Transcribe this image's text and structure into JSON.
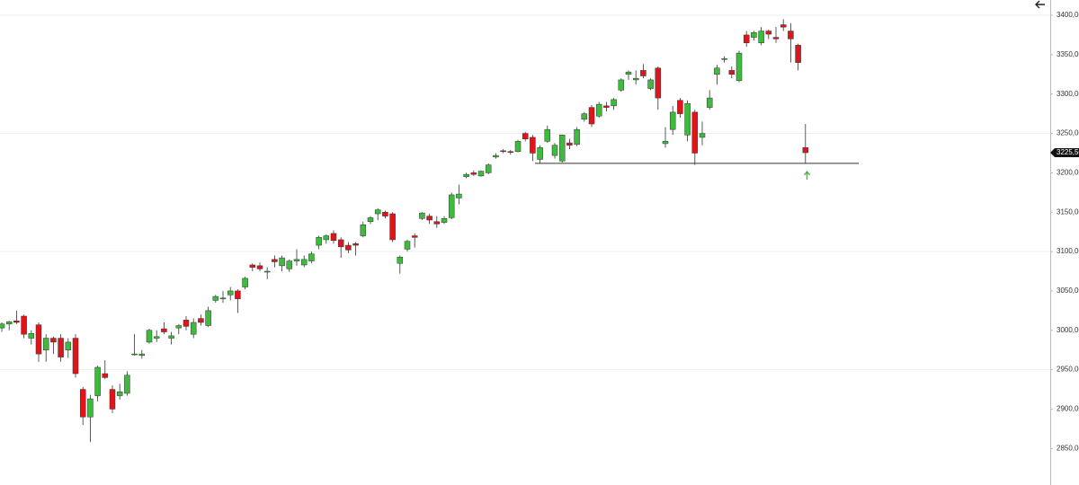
{
  "chart_data": {
    "type": "candlestick",
    "open": [
      3003,
      3008,
      3012,
      3018,
      2990,
      3007,
      2975,
      2990,
      2990,
      2975,
      2990,
      2925,
      2890,
      2917,
      2945,
      2925,
      2917,
      2920,
      2970,
      2968,
      2985,
      2990,
      3002,
      2990,
      3003,
      3013,
      2995,
      3015,
      3006,
      3038,
      3040,
      3045,
      3050,
      3055,
      3083,
      3082,
      3075,
      3090,
      3082,
      3078,
      3088,
      3083,
      3088,
      3108,
      3115,
      3123,
      3115,
      3108,
      3110,
      3120,
      3138,
      3148,
      3150,
      3148,
      3085,
      3103,
      3120,
      3142,
      3145,
      3138,
      3137,
      3143,
      3168,
      3195,
      3200,
      3196,
      3200,
      3220,
      3228,
      3227,
      3227,
      3250,
      3245,
      3217,
      3240,
      3222,
      3215,
      3238,
      3236,
      3268,
      3283,
      3272,
      3285,
      3285,
      3305,
      3325,
      3318,
      3330,
      3307,
      3333,
      3237,
      3255,
      3292,
      3248,
      3277,
      3245,
      3283,
      3325,
      3345,
      3330,
      3317,
      3375,
      3372,
      3365,
      3380,
      3372,
      3388,
      3380,
      3362,
      3232
    ],
    "high": [
      3010,
      3012,
      3025,
      3020,
      3000,
      3010,
      2995,
      2992,
      2995,
      2990,
      2995,
      2928,
      2918,
      2955,
      2962,
      2930,
      2932,
      2948,
      2995,
      2975,
      3002,
      3000,
      3010,
      2998,
      3008,
      3018,
      3015,
      3020,
      3030,
      3045,
      3050,
      3055,
      3052,
      3068,
      3085,
      3086,
      3080,
      3095,
      3095,
      3090,
      3103,
      3095,
      3100,
      3120,
      3122,
      3127,
      3118,
      3112,
      3112,
      3138,
      3145,
      3155,
      3152,
      3150,
      3095,
      3115,
      3123,
      3150,
      3148,
      3145,
      3145,
      3175,
      3185,
      3200,
      3203,
      3203,
      3212,
      3225,
      3230,
      3229,
      3242,
      3252,
      3248,
      3235,
      3260,
      3238,
      3248,
      3243,
      3258,
      3277,
      3286,
      3290,
      3290,
      3295,
      3320,
      3330,
      3330,
      3338,
      3320,
      3335,
      3258,
      3285,
      3295,
      3292,
      3280,
      3265,
      3305,
      3337,
      3348,
      3335,
      3355,
      3380,
      3380,
      3385,
      3382,
      3385,
      3395,
      3390,
      3364,
      3262
    ],
    "low": [
      2998,
      3000,
      3008,
      2990,
      2982,
      2960,
      2960,
      2970,
      2960,
      2965,
      2940,
      2880,
      2858,
      2910,
      2938,
      2895,
      2912,
      2917,
      2968,
      2964,
      2983,
      2985,
      2995,
      2982,
      2995,
      3000,
      2990,
      3006,
      3004,
      3035,
      3035,
      3038,
      3022,
      3052,
      3075,
      3075,
      3065,
      3080,
      3075,
      3074,
      3082,
      3080,
      3085,
      3103,
      3110,
      3110,
      3092,
      3098,
      3095,
      3118,
      3135,
      3140,
      3142,
      3112,
      3072,
      3100,
      3105,
      3140,
      3135,
      3130,
      3135,
      3141,
      3160,
      3193,
      3196,
      3195,
      3198,
      3218,
      3225,
      3223,
      3226,
      3240,
      3215,
      3212,
      3238,
      3218,
      3213,
      3230,
      3234,
      3265,
      3258,
      3270,
      3278,
      3280,
      3303,
      3318,
      3312,
      3320,
      3305,
      3280,
      3232,
      3248,
      3270,
      3240,
      3210,
      3235,
      3280,
      3312,
      3340,
      3320,
      3315,
      3360,
      3368,
      3362,
      3370,
      3365,
      3380,
      3340,
      3330,
      3212
    ],
    "close": [
      3008,
      3011,
      3010,
      2995,
      2996,
      2970,
      2990,
      2985,
      2966,
      2985,
      2945,
      2890,
      2913,
      2953,
      2940,
      2900,
      2922,
      2943,
      2970,
      2970,
      3000,
      2992,
      2998,
      2993,
      3006,
      3005,
      3010,
      3010,
      3025,
      3043,
      3041,
      3050,
      3040,
      3066,
      3080,
      3078,
      3075,
      3087,
      3092,
      3088,
      3090,
      3090,
      3097,
      3118,
      3120,
      3114,
      3106,
      3102,
      3108,
      3134,
      3143,
      3153,
      3145,
      3115,
      3093,
      3113,
      3118,
      3149,
      3140,
      3135,
      3142,
      3172,
      3173,
      3198,
      3198,
      3202,
      3210,
      3222,
      3227,
      3226,
      3240,
      3243,
      3225,
      3232,
      3255,
      3235,
      3248,
      3235,
      3255,
      3275,
      3262,
      3287,
      3283,
      3293,
      3318,
      3328,
      3320,
      3323,
      3318,
      3295,
      3240,
      3277,
      3275,
      3288,
      3225,
      3250,
      3295,
      3333,
      3345,
      3325,
      3352,
      3365,
      3378,
      3380,
      3376,
      3370,
      3385,
      3370,
      3340,
      3225.5
    ],
    "up_color": "#3dbb3d",
    "down_color": "#e0141b",
    "ylim": [
      2803.6,
      3419.4
    ],
    "yticks": [
      {
        "value": 3400,
        "label": "3400,00"
      },
      {
        "value": 3350,
        "label": "3350,00"
      },
      {
        "value": 3300,
        "label": "3300,00"
      },
      {
        "value": 3250,
        "label": "3250,00"
      },
      {
        "value": 3200,
        "label": "3200,00"
      },
      {
        "value": 3150,
        "label": "3150,00"
      },
      {
        "value": 3100,
        "label": "3100,00"
      },
      {
        "value": 3050,
        "label": "3050,00"
      },
      {
        "value": 3000,
        "label": "3000,00"
      },
      {
        "value": 2950,
        "label": "2950,00"
      },
      {
        "value": 2900,
        "label": "2900,00"
      },
      {
        "value": 2850,
        "label": "2850,00"
      }
    ],
    "grid_lines": [
      3400,
      3250,
      3100,
      2950
    ],
    "last_price": {
      "value": 3225.5,
      "label": "3225,50"
    },
    "reference_line": 3212
  }
}
